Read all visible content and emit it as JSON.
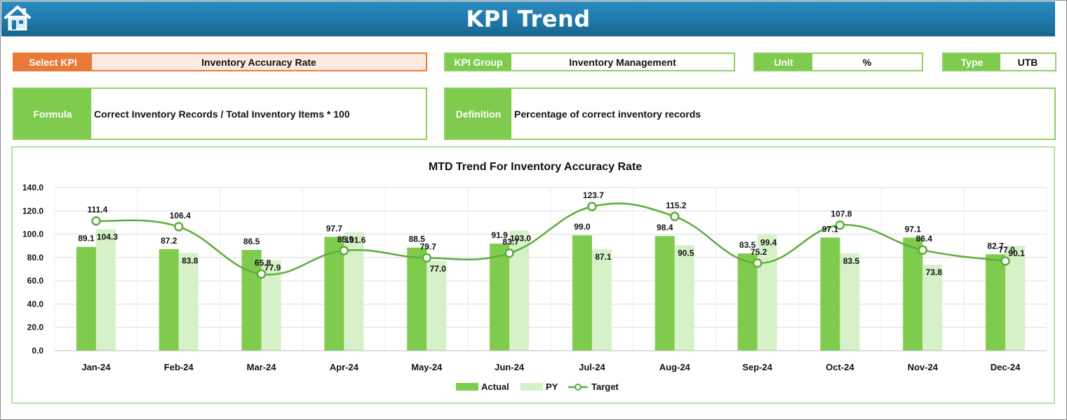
{
  "header": {
    "title": "KPI Trend",
    "home_icon": "house-icon"
  },
  "select_kpi": {
    "label": "Select KPI",
    "value": "Inventory Accuracy Rate"
  },
  "kpi_group": {
    "label": "KPI Group",
    "value": "Inventory Management"
  },
  "unit": {
    "label": "Unit",
    "value": "%"
  },
  "type": {
    "label": "Type",
    "value": "UTB"
  },
  "formula": {
    "label": "Formula",
    "value": "Correct Inventory Records / Total Inventory Items * 100"
  },
  "definition": {
    "label": "Definition",
    "value": "Percentage of correct inventory records"
  },
  "colors": {
    "actual": "#7ecb4e",
    "py": "#d6f0c8",
    "target": "#5cad3a",
    "header": "#1f78a8",
    "accent": "#e97a37"
  },
  "chart_data": {
    "type": "bar",
    "title": "MTD Trend For Inventory Accuracy Rate",
    "categories": [
      "Jan-24",
      "Feb-24",
      "Mar-24",
      "Apr-24",
      "May-24",
      "Jun-24",
      "Jul-24",
      "Aug-24",
      "Sep-24",
      "Oct-24",
      "Nov-24",
      "Dec-24"
    ],
    "ylim": [
      0,
      140
    ],
    "y_ticks": [
      "0.0",
      "20.0",
      "40.0",
      "60.0",
      "80.0",
      "100.0",
      "120.0",
      "140.0"
    ],
    "grid": true,
    "legend_position": "bottom",
    "series": [
      {
        "name": "Actual",
        "kind": "bar",
        "values": [
          89.1,
          87.2,
          86.5,
          97.7,
          88.5,
          91.9,
          99.0,
          98.4,
          83.5,
          97.1,
          97.1,
          82.7
        ]
      },
      {
        "name": "PY",
        "kind": "bar",
        "values": [
          104.3,
          83.8,
          77.9,
          101.6,
          77.0,
          103.0,
          87.1,
          90.5,
          99.4,
          83.5,
          73.8,
          90.1
        ]
      },
      {
        "name": "Target",
        "kind": "line",
        "values": [
          111.4,
          106.4,
          65.8,
          85.9,
          79.7,
          83.7,
          123.7,
          115.2,
          75.2,
          107.8,
          86.4,
          77.0
        ]
      }
    ]
  }
}
